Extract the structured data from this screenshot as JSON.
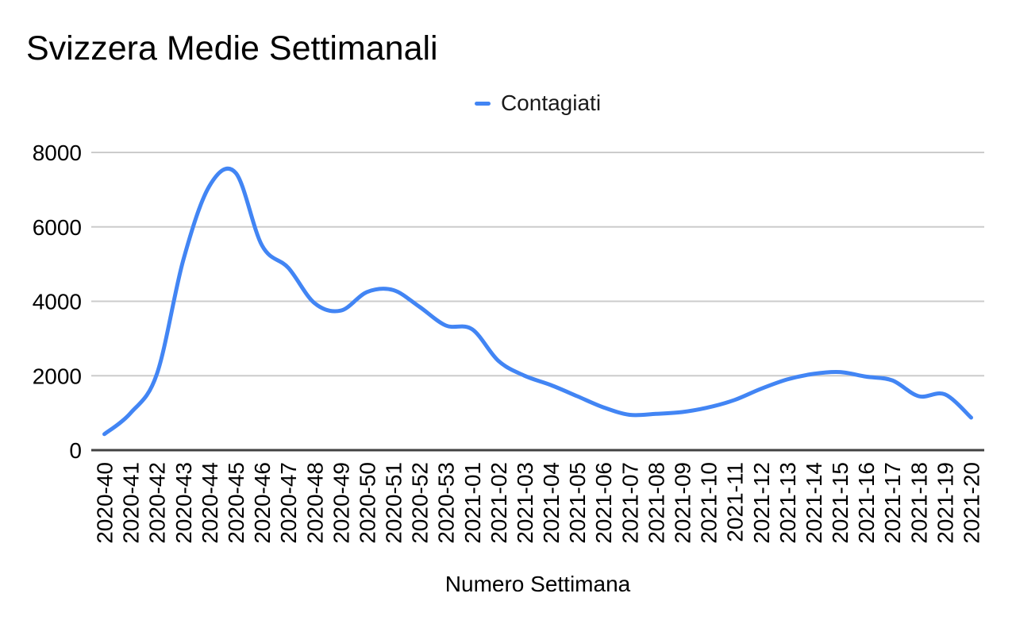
{
  "header": {
    "title": "Svizzera Medie Settimanali"
  },
  "legend": {
    "items": [
      {
        "label": "Contagiati",
        "color": "#4285f4"
      }
    ]
  },
  "axis": {
    "x_title": "Numero Settimana"
  },
  "chart_data": {
    "type": "line",
    "title": "Svizzera Medie Settimanali",
    "xlabel": "Numero Settimana",
    "ylabel": "",
    "legend_entries": [
      "Contagiati"
    ],
    "legend_position": "top-center",
    "smooth": true,
    "grid": true,
    "ylim": [
      0,
      8000
    ],
    "yticks": [
      0,
      2000,
      4000,
      6000,
      8000
    ],
    "series_color": "#4285f4",
    "gridline_color": "#cccccc",
    "axis_color": "#424242",
    "tick_label_color": "#000000",
    "categories": [
      "2020-40",
      "2020-41",
      "2020-42",
      "2020-43",
      "2020-44",
      "2020-45",
      "2020-46",
      "2020-47",
      "2020-48",
      "2020-49",
      "2020-50",
      "2020-51",
      "2020-52",
      "2020-53",
      "2021-01",
      "2021-02",
      "2021-03",
      "2021-04",
      "2021-05",
      "2021-06",
      "2021-07",
      "2021-08",
      "2021-09",
      "2021-10",
      "2021-11",
      "2021-12",
      "2021-13",
      "2021-14",
      "2021-15",
      "2021-16",
      "2021-17",
      "2021-18",
      "2021-19",
      "2021-20"
    ],
    "series": [
      {
        "name": "Contagiati",
        "values": [
          430,
          1000,
          2050,
          5100,
          7100,
          7450,
          5500,
          4900,
          3950,
          3750,
          4250,
          4300,
          3850,
          3350,
          3250,
          2400,
          2000,
          1750,
          1450,
          1150,
          950,
          975,
          1025,
          1150,
          1350,
          1650,
          1900,
          2050,
          2100,
          1975,
          1875,
          1450,
          1500,
          875
        ]
      }
    ]
  }
}
